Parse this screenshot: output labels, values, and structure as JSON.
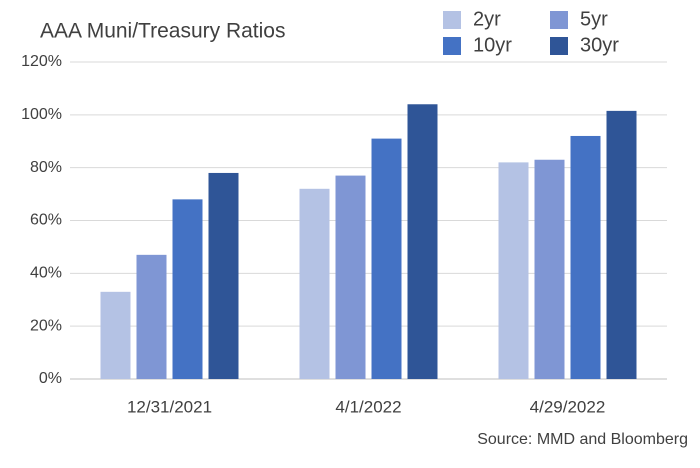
{
  "chart_data": {
    "type": "bar",
    "title": "AAA Muni/Treasury Ratios",
    "categories": [
      "12/31/2021",
      "4/1/2022",
      "4/29/2022"
    ],
    "series": [
      {
        "name": "2yr",
        "color": "#b4c2e4",
        "values": [
          33,
          72,
          82
        ]
      },
      {
        "name": "5yr",
        "color": "#7f96d4",
        "values": [
          47,
          77,
          83
        ]
      },
      {
        "name": "10yr",
        "color": "#4472c4",
        "values": [
          68,
          91,
          92
        ]
      },
      {
        "name": "30yr",
        "color": "#2f5597",
        "values": [
          78,
          104,
          101.5
        ]
      }
    ],
    "ylim": [
      0,
      120
    ],
    "yticks": [
      {
        "value": 0,
        "label": "0%"
      },
      {
        "value": 20,
        "label": "20%"
      },
      {
        "value": 40,
        "label": "40%"
      },
      {
        "value": 60,
        "label": "60%"
      },
      {
        "value": 80,
        "label": "80%"
      },
      {
        "value": 100,
        "label": "100%"
      },
      {
        "value": 120,
        "label": "120%"
      }
    ],
    "grid": true,
    "legend": "top-right",
    "source": "Source: MMD and Bloomberg"
  }
}
